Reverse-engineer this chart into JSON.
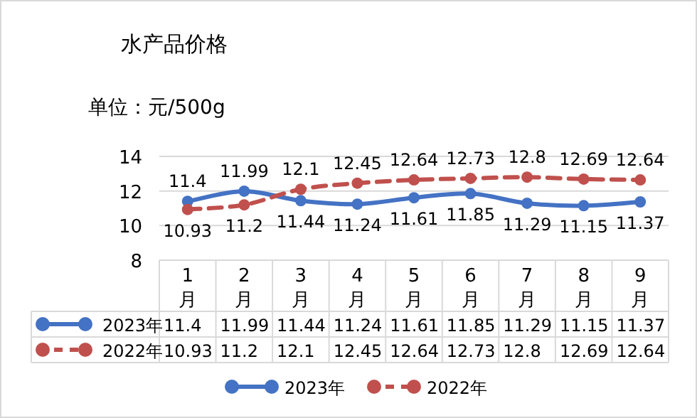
{
  "chart_data": {
    "type": "line",
    "title": "水产品价格",
    "subtitle": "单位：元/500g",
    "categories": [
      "1月",
      "2月",
      "3月",
      "4月",
      "5月",
      "6月",
      "7月",
      "8月",
      "9月"
    ],
    "series": [
      {
        "name": "2023年",
        "color": "#4472c4",
        "line_style": "solid",
        "values": [
          11.4,
          11.99,
          11.44,
          11.24,
          11.61,
          11.85,
          11.29,
          11.15,
          11.37
        ]
      },
      {
        "name": "2022年",
        "color": "#c0504d",
        "line_style": "dashed",
        "values": [
          10.93,
          11.2,
          12.1,
          12.45,
          12.64,
          12.73,
          12.8,
          12.69,
          12.64
        ]
      }
    ],
    "annotations": [
      {
        "text": "11.4",
        "x": "1月",
        "y": 11.4
      },
      {
        "text": "11.99",
        "x": "2月",
        "y": 11.99
      },
      {
        "text": "11.44",
        "x": "3月",
        "y": 11.44
      },
      {
        "text": "11.24",
        "x": "4月",
        "y": 11.24
      },
      {
        "text": "11.61",
        "x": "5月",
        "y": 11.61
      },
      {
        "text": "11.85",
        "x": "6月",
        "y": 11.85
      },
      {
        "text": "11.29",
        "x": "7月",
        "y": 11.29
      },
      {
        "text": "11.15",
        "x": "8月",
        "y": 11.15
      },
      {
        "text": "11.37",
        "x": "9月",
        "y": 11.37
      },
      {
        "text": "10.93",
        "x": "1月",
        "y": 10.93
      },
      {
        "text": "11.2",
        "x": "2月",
        "y": 11.2
      },
      {
        "text": "12.1",
        "x": "3月",
        "y": 12.1
      },
      {
        "text": "12.45",
        "x": "4月",
        "y": 12.45
      },
      {
        "text": "12.64",
        "x": "5月",
        "y": 12.64
      },
      {
        "text": "12.73",
        "x": "6月",
        "y": 12.73
      },
      {
        "text": "12.8",
        "x": "7月",
        "y": 12.8
      },
      {
        "text": "12.69",
        "x": "8月",
        "y": 12.69
      },
      {
        "text": "12.64",
        "x": "9月",
        "y": 12.64
      }
    ],
    "ylim": [
      8,
      14
    ],
    "yticks": [
      8,
      10,
      12,
      14
    ],
    "grid": "y",
    "legend": "bottom",
    "marker": "circle",
    "data_labels": true
  }
}
